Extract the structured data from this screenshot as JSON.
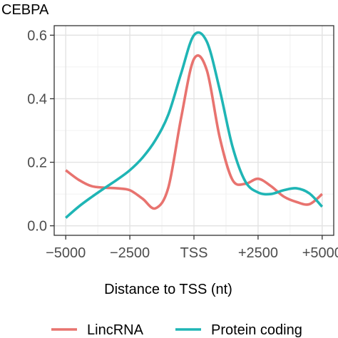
{
  "chart_data": {
    "type": "line",
    "title": "CEBPA",
    "xlabel": "Distance to TSS (nt)",
    "ylabel": "",
    "xlim": [
      -5000,
      5000
    ],
    "ylim": [
      0,
      0.6
    ],
    "xticks": [
      {
        "value": -5000,
        "label": "−5000"
      },
      {
        "value": -2500,
        "label": "−2500"
      },
      {
        "value": 0,
        "label": "TSS"
      },
      {
        "value": 2500,
        "label": "+2500"
      },
      {
        "value": 5000,
        "label": "+5000"
      }
    ],
    "yticks": [
      {
        "value": 0.0,
        "label": "0.0"
      },
      {
        "value": 0.2,
        "label": "0.2"
      },
      {
        "value": 0.4,
        "label": "0.4"
      },
      {
        "value": 0.6,
        "label": "0.6"
      }
    ],
    "grid": true,
    "legend_position": "bottom",
    "series": [
      {
        "name": "LincRNA",
        "color": "#E8736F",
        "x": [
          -5000,
          -4500,
          -4000,
          -3500,
          -3000,
          -2500,
          -2000,
          -1500,
          -1000,
          -500,
          0,
          500,
          1000,
          1500,
          2000,
          2500,
          3000,
          3500,
          4000,
          4500,
          5000
        ],
        "y": [
          0.175,
          0.145,
          0.125,
          0.12,
          0.118,
          0.112,
          0.085,
          0.055,
          0.12,
          0.34,
          0.525,
          0.49,
          0.28,
          0.145,
          0.132,
          0.148,
          0.125,
          0.092,
          0.075,
          0.068,
          0.1
        ]
      },
      {
        "name": "Protein coding",
        "color": "#1FB5B5",
        "x": [
          -5000,
          -4500,
          -4000,
          -3500,
          -3000,
          -2500,
          -2000,
          -1500,
          -1000,
          -500,
          0,
          500,
          1000,
          1500,
          2000,
          2500,
          3000,
          3500,
          4000,
          4500,
          5000
        ],
        "y": [
          0.025,
          0.06,
          0.09,
          0.118,
          0.145,
          0.175,
          0.215,
          0.27,
          0.35,
          0.48,
          0.6,
          0.58,
          0.43,
          0.25,
          0.14,
          0.105,
          0.1,
          0.112,
          0.118,
          0.102,
          0.06
        ]
      }
    ]
  }
}
